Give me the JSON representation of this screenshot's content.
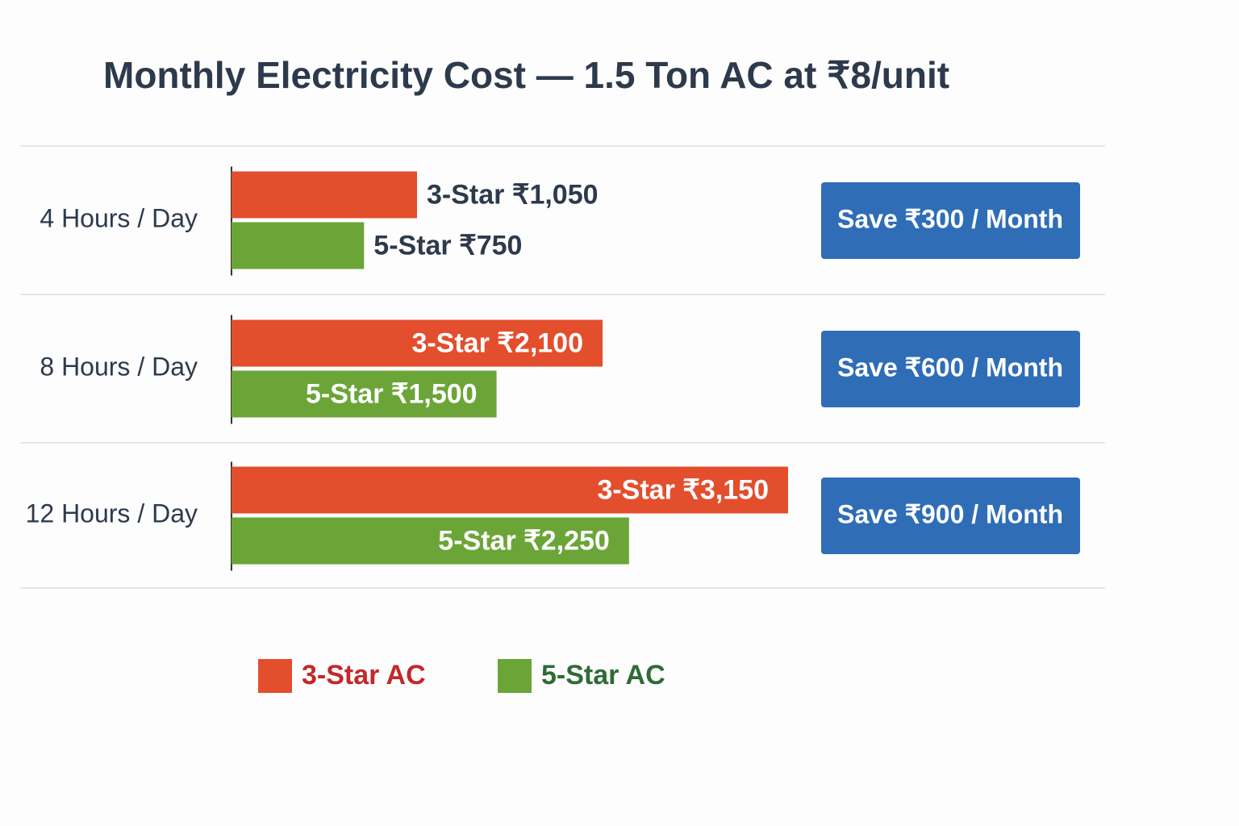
{
  "chart_data": {
    "type": "bar",
    "orientation": "horizontal",
    "title": "Monthly Electricity Cost — 1.5 Ton AC at ₹8/unit",
    "categories": [
      "4 Hours / Day",
      "8 Hours / Day",
      "12 Hours / Day"
    ],
    "series": [
      {
        "name": "3-Star AC",
        "color": "#e34e2d",
        "legend_text_color": "#c3282a",
        "values": [
          1050,
          2100,
          3150
        ],
        "value_labels": [
          "3-Star ₹1,050",
          "3-Star ₹2,100",
          "3-Star ₹3,150"
        ]
      },
      {
        "name": "5-Star AC",
        "color": "#6ba537",
        "legend_text_color": "#2e6b36",
        "values": [
          750,
          1500,
          2250
        ],
        "value_labels": [
          "5-Star ₹750",
          "5-Star ₹1,500",
          "5-Star ₹2,250"
        ]
      }
    ],
    "savings": {
      "color": "#2f6db6",
      "values": [
        300,
        600,
        900
      ],
      "value_labels": [
        "Save ₹300 / Month",
        "Save ₹600 / Month",
        "Save ₹900 / Month"
      ]
    }
  }
}
